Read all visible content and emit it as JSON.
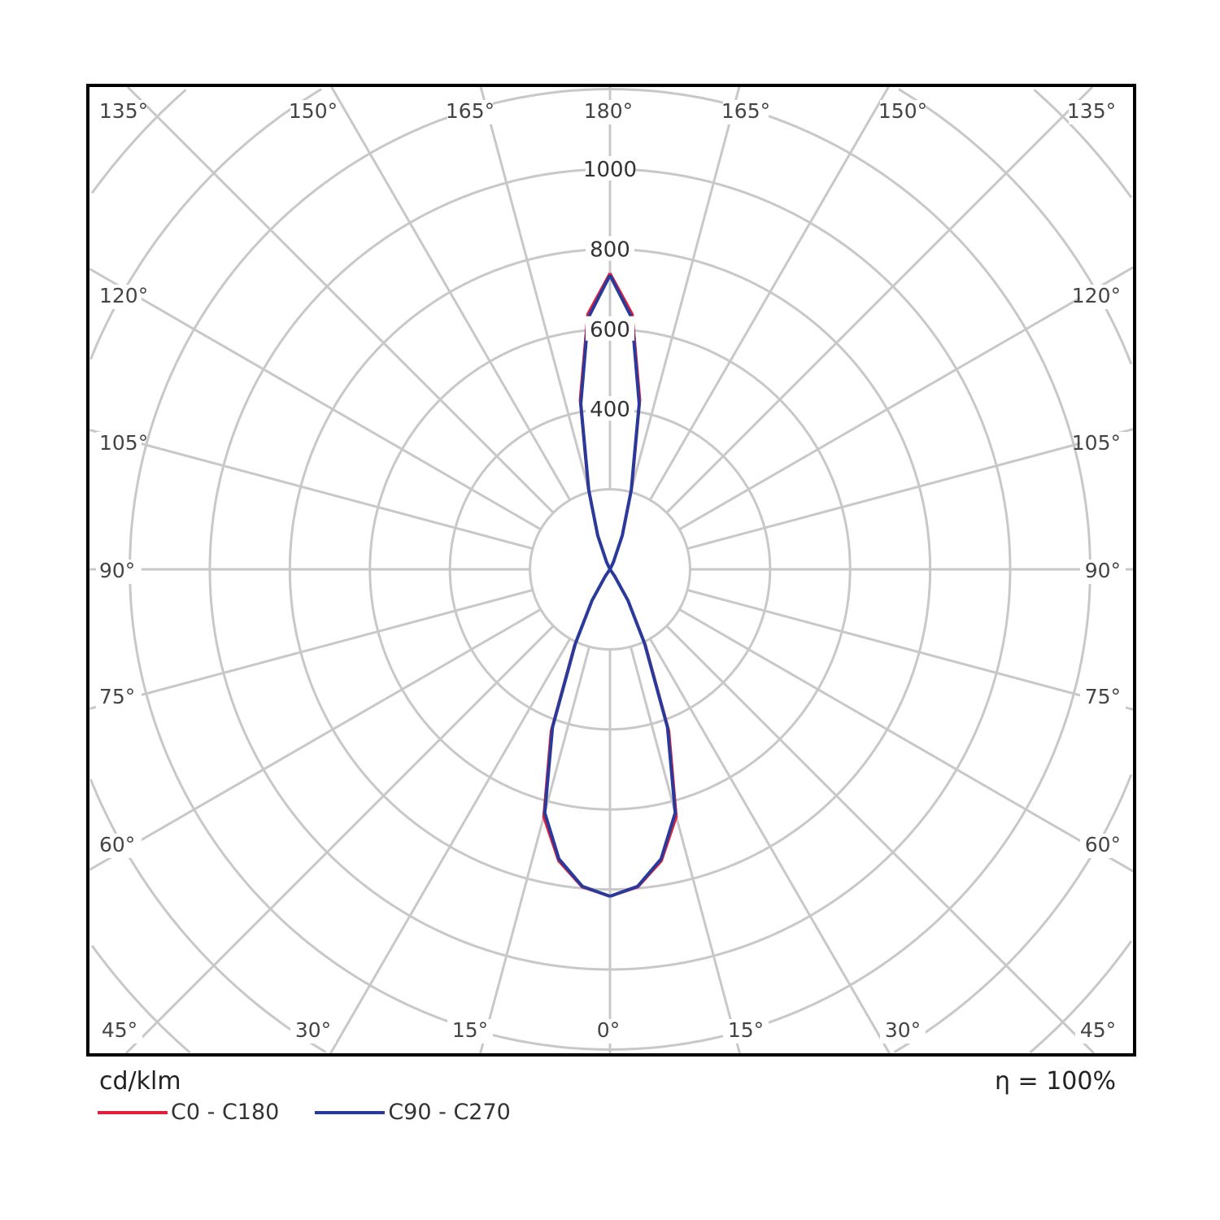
{
  "chart_data": {
    "type": "polar",
    "unit_label": "cd/klm",
    "efficiency_label": "η = 100%",
    "radial_range": [
      0,
      1200
    ],
    "radial_ticks": [
      200,
      400,
      600,
      800,
      1000,
      1200
    ],
    "radial_tick_labels": [
      "400",
      "600",
      "800",
      "1000"
    ],
    "angle_labels_top": [
      "135°",
      "150°",
      "165°",
      "180°",
      "165°",
      "150°",
      "135°"
    ],
    "angle_labels_left": [
      "120°",
      "105°",
      "90°",
      "75°",
      "60°"
    ],
    "angle_labels_right": [
      "120°",
      "105°",
      "90°",
      "75°",
      "60°"
    ],
    "angle_labels_bottom": [
      "45°",
      "30°",
      "15°",
      "0°",
      "15°",
      "30°",
      "45°"
    ],
    "grid": true,
    "legend_position": "bottom-left",
    "gamma": [
      0,
      5,
      10,
      15,
      20,
      25,
      30,
      35,
      40,
      45,
      50,
      55,
      60,
      65,
      70,
      75,
      80,
      85,
      90,
      95,
      100,
      105,
      110,
      115,
      120,
      125,
      130,
      135,
      140,
      145,
      150,
      155,
      160,
      165,
      170,
      175,
      180
    ],
    "series": [
      {
        "name": "C0 - C180",
        "color": "#e0203a",
        "values": [
          817,
          797,
          740,
          640,
          430,
          210,
          90,
          20,
          0,
          0,
          0,
          0,
          0,
          0,
          0,
          0,
          0,
          0,
          0,
          0,
          0,
          0,
          0,
          0,
          0,
          0,
          0,
          0,
          0,
          0,
          0,
          20,
          90,
          210,
          430,
          640,
          740
        ]
      },
      {
        "name": "C90 - C270",
        "color": "#2a3a9a",
        "values": [
          817,
          795,
          735,
          630,
          420,
          205,
          90,
          20,
          0,
          0,
          0,
          0,
          0,
          0,
          0,
          0,
          0,
          0,
          0,
          0,
          0,
          0,
          0,
          0,
          0,
          0,
          0,
          0,
          0,
          0,
          0,
          20,
          90,
          205,
          420,
          630,
          735
        ]
      }
    ]
  }
}
